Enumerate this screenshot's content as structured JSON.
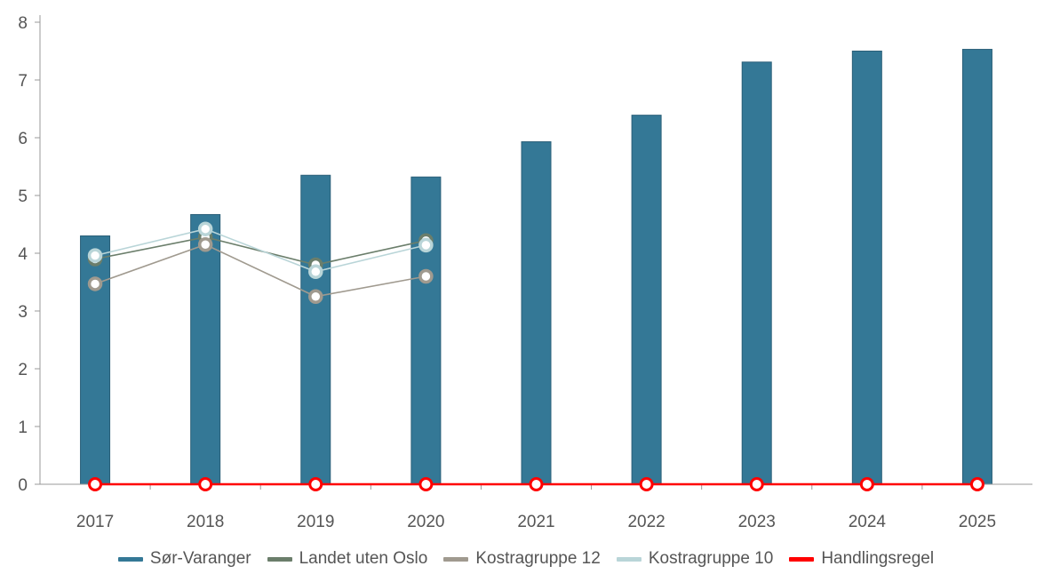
{
  "chart_data": {
    "type": "bar",
    "categories": [
      "2017",
      "2018",
      "2019",
      "2020",
      "2021",
      "2022",
      "2023",
      "2024",
      "2025"
    ],
    "ylim": [
      0,
      8
    ],
    "yticks": [
      0,
      1,
      2,
      3,
      4,
      5,
      6,
      7,
      8
    ],
    "grid": false,
    "legend_position": "bottom",
    "series": [
      {
        "name": "Sør-Varanger",
        "kind": "bar",
        "color": "#347896",
        "values": [
          4.3,
          4.67,
          5.35,
          5.32,
          5.93,
          6.39,
          7.31,
          7.5,
          7.53
        ]
      },
      {
        "name": "Landet uten Oslo",
        "kind": "line",
        "color": "#6b7e6b",
        "values": [
          3.9,
          4.28,
          3.8,
          4.22,
          null,
          null,
          null,
          null,
          null
        ]
      },
      {
        "name": "Kostragruppe 12",
        "kind": "line",
        "color": "#a09a8f",
        "values": [
          3.47,
          4.15,
          3.25,
          3.6,
          null,
          null,
          null,
          null,
          null
        ]
      },
      {
        "name": "Kostragruppe 10",
        "kind": "line",
        "color": "#b9d5d8",
        "values": [
          3.96,
          4.42,
          3.68,
          4.14,
          null,
          null,
          null,
          null,
          null
        ]
      },
      {
        "name": "Handlingsregel",
        "kind": "line",
        "color": "#ff0000",
        "values": [
          0,
          0,
          0,
          0,
          0,
          0,
          0,
          0,
          0
        ]
      }
    ]
  }
}
